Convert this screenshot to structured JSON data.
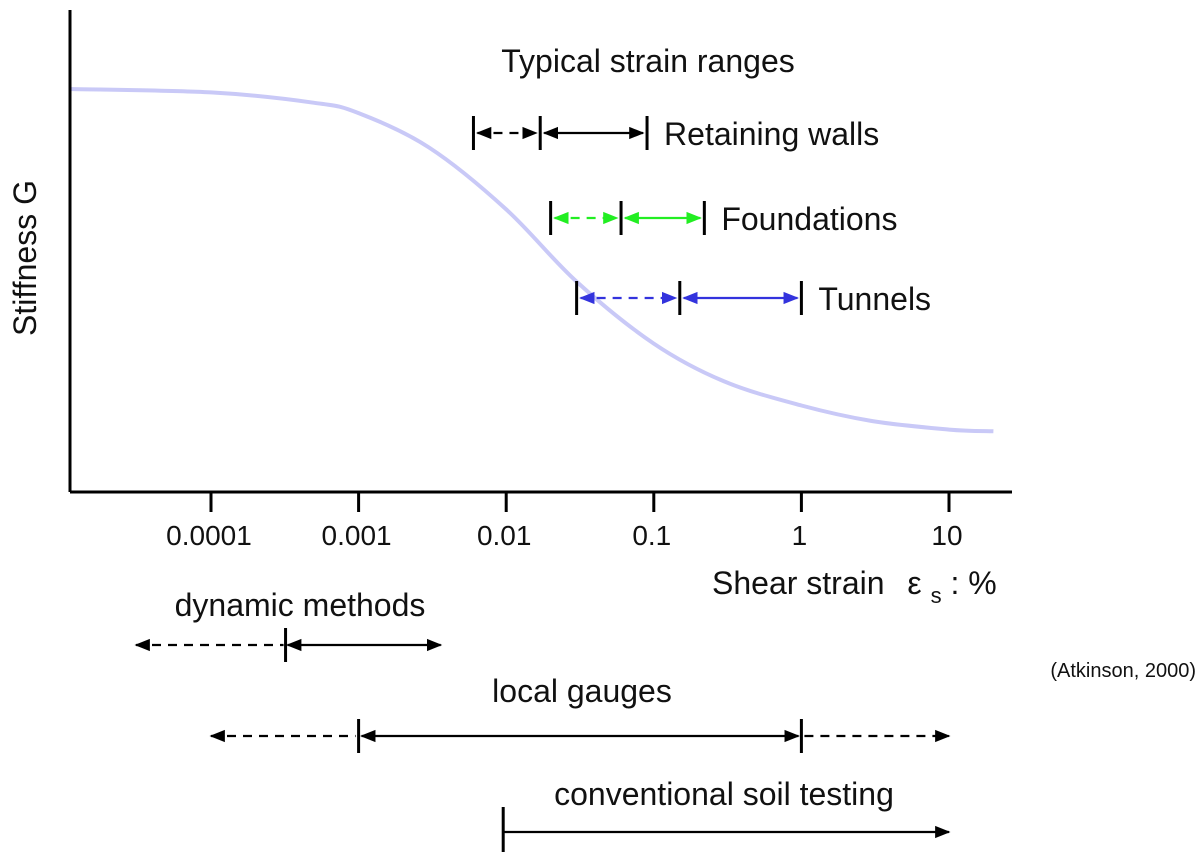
{
  "chart_data": {
    "type": "line",
    "title": "Typical strain ranges",
    "ylabel": "Stiffness G",
    "xlabel": "Shear strain",
    "xlabel_symbol": "ε",
    "xlabel_subscript": "s",
    "xlabel_unit": ": %",
    "x_scale": "log",
    "xlim": [
      1e-05,
      20
    ],
    "x_ticks": [
      {
        "value": 0.0001,
        "label": "0.0001"
      },
      {
        "value": 0.001,
        "label": "0.001"
      },
      {
        "value": 0.01,
        "label": "0.01"
      },
      {
        "value": 0.1,
        "label": "0.1"
      },
      {
        "value": 1,
        "label": "1"
      },
      {
        "value": 10,
        "label": "10"
      }
    ],
    "curve": {
      "color": "#c9c9f7",
      "points": [
        [
          1.1e-05,
          1.0
        ],
        [
          0.0001,
          0.99
        ],
        [
          0.0005,
          0.96
        ],
        [
          0.001,
          0.93
        ],
        [
          0.003,
          0.83
        ],
        [
          0.01,
          0.65
        ],
        [
          0.03,
          0.44
        ],
        [
          0.1,
          0.26
        ],
        [
          0.3,
          0.15
        ],
        [
          1,
          0.08
        ],
        [
          3,
          0.035
        ],
        [
          10,
          0.01
        ],
        [
          20,
          0.005
        ]
      ]
    },
    "strain_ranges": [
      {
        "label": "Retaining walls",
        "color": "#000000",
        "from": 0.006,
        "mid": 0.017,
        "to": 0.09
      },
      {
        "label": "Foundations",
        "color": "#22ee22",
        "from": 0.02,
        "mid": 0.06,
        "to": 0.22
      },
      {
        "label": "Tunnels",
        "color": "#3333dd",
        "from": 0.03,
        "mid": 0.15,
        "to": 1.0
      }
    ],
    "testing_methods": [
      {
        "label": "dynamic methods",
        "dashed": [
          1e-05,
          0.00032
        ],
        "solid": [
          0.00032,
          0.0036
        ],
        "mark": 0.00032,
        "start_mark": null
      },
      {
        "label": "local gauges",
        "dashed_left": [
          0.0001,
          0.001
        ],
        "solid": [
          0.001,
          1
        ],
        "dashed_right": [
          1,
          10
        ],
        "marks": [
          0.001,
          1
        ]
      },
      {
        "label": "conventional soil testing",
        "solid": [
          0.01,
          10
        ],
        "start_mark": 0.01
      }
    ],
    "source_note": "(Atkinson, 2000)"
  }
}
